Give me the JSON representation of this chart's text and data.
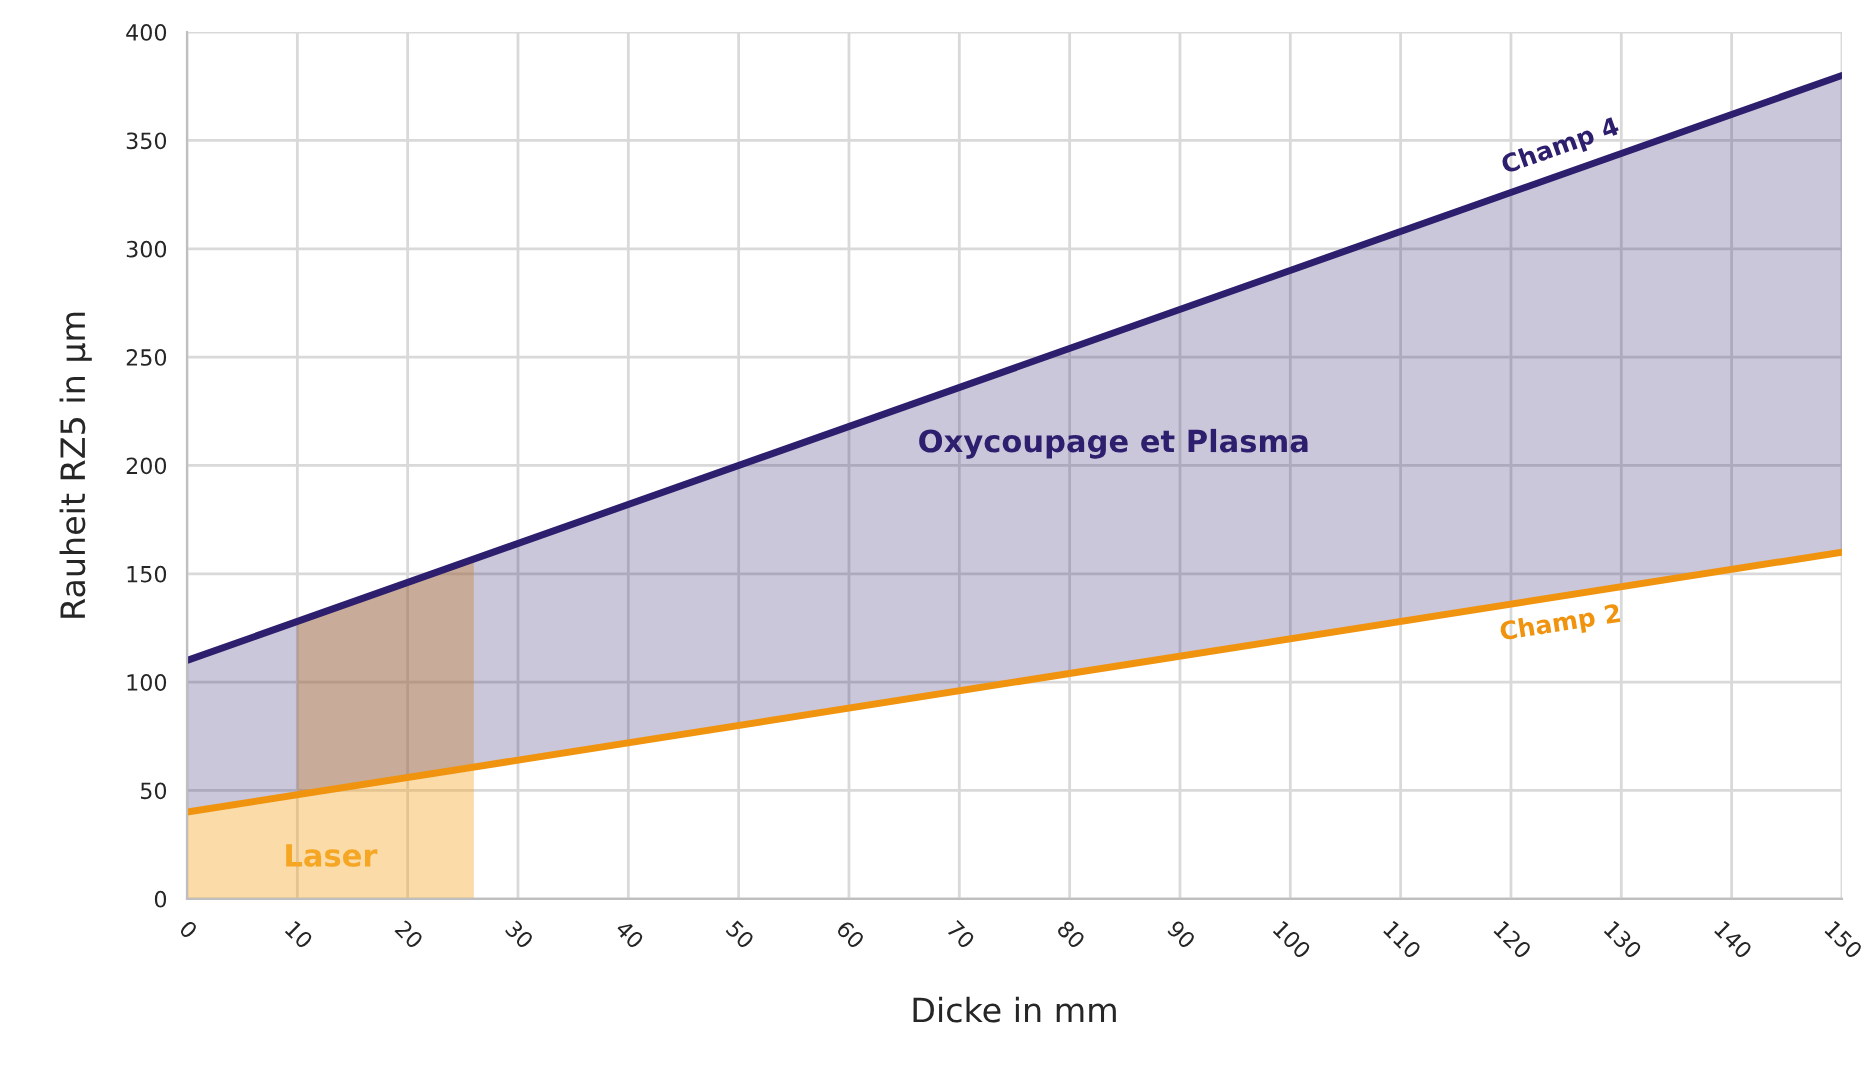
{
  "chart_data": {
    "type": "line",
    "xlabel": "Dicke in mm",
    "ylabel": "Rauheit RZ5 in µm",
    "xlim": [
      0,
      150
    ],
    "ylim": [
      0,
      400
    ],
    "xticks": [
      0,
      10,
      20,
      30,
      40,
      50,
      60,
      70,
      80,
      90,
      100,
      110,
      120,
      130,
      140,
      150
    ],
    "yticks": [
      0,
      50,
      100,
      150,
      200,
      250,
      300,
      350,
      400
    ],
    "grid": true,
    "legend": false,
    "series": [
      {
        "name": "Laser",
        "type": "area",
        "color": "#f5a623",
        "x": [
          0,
          10,
          10,
          26
        ],
        "values": [
          40,
          48,
          128,
          157
        ]
      },
      {
        "name": "Champ 4",
        "color": "#2e1f6e",
        "x": [
          0,
          150
        ],
        "values": [
          110,
          380
        ],
        "lower": [
          40,
          160
        ],
        "upper": [
          110,
          380
        ]
      },
      {
        "name": "Champ 2",
        "color": "#f0930f",
        "x": [
          0,
          150
        ],
        "values": [
          40,
          160
        ]
      }
    ],
    "annotations": [
      "Oxycoupage et Plasma"
    ]
  }
}
